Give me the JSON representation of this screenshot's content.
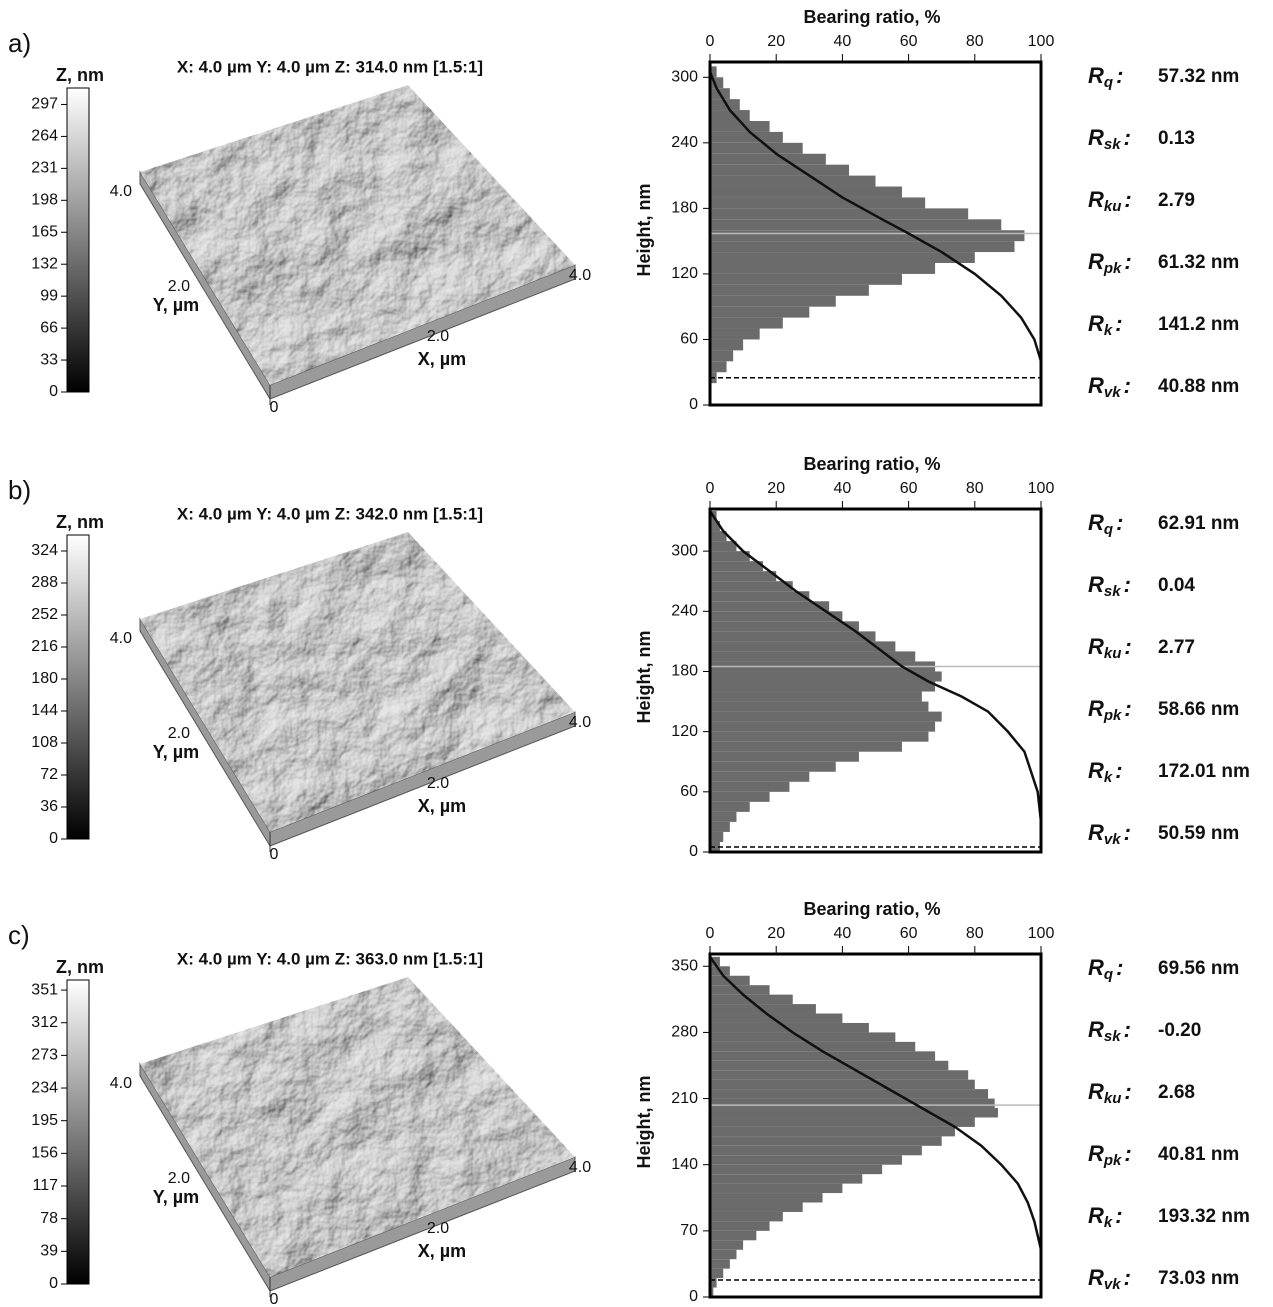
{
  "chart_data": [
    {
      "type": "bearing-histogram",
      "panel_label": "a)",
      "afm": {
        "title": "X: 4.0 µm Y: 4.0 µm Z: 314.0 nm [1.5:1]",
        "colorbar": {
          "label": "Z, nm",
          "ylim": [
            0,
            314
          ],
          "yticks": [
            0,
            33,
            66,
            99,
            132,
            165,
            198,
            231,
            264,
            297
          ]
        },
        "x_label": "X, µm",
        "y_label": "Y, µm",
        "origin": 0,
        "x_ticks": [
          {
            "value": 2,
            "label": "2.0"
          },
          {
            "value": 4,
            "label": "4.0"
          }
        ],
        "y_ticks": [
          {
            "value": 2,
            "label": "2.0"
          },
          {
            "value": 4,
            "label": "4.0"
          }
        ]
      },
      "title": "Bearing ratio, %",
      "y_label": "Height, nm",
      "xlim": [
        0,
        100
      ],
      "xticks": [
        0,
        20,
        40,
        60,
        80,
        100
      ],
      "ylim": [
        0,
        314
      ],
      "yticks": [
        0,
        60,
        120,
        180,
        240,
        300
      ],
      "bins": [
        20,
        30,
        40,
        50,
        60,
        70,
        80,
        90,
        100,
        110,
        120,
        130,
        140,
        150,
        160,
        170,
        180,
        190,
        200,
        210,
        220,
        230,
        240,
        250,
        260,
        270,
        280,
        290,
        300,
        310
      ],
      "counts": [
        2,
        5,
        7,
        10,
        15,
        22,
        30,
        38,
        48,
        58,
        68,
        80,
        92,
        95,
        88,
        78,
        65,
        58,
        50,
        42,
        35,
        28,
        22,
        18,
        12,
        9,
        6,
        4,
        2
      ],
      "curve": {
        "x": [
          0,
          2,
          6,
          12,
          20,
          30,
          40,
          52,
          60,
          70,
          80,
          88,
          94,
          98,
          100
        ],
        "y": [
          305,
          290,
          270,
          250,
          230,
          210,
          190,
          170,
          157,
          140,
          120,
          100,
          80,
          60,
          40
        ]
      },
      "mid_line": 157,
      "dashed_line": 25,
      "params": [
        {
          "symbol": "R",
          "sub": "q",
          "sep": ":",
          "value": "57.32 nm"
        },
        {
          "symbol": "R",
          "sub": "sk",
          "sep": ":",
          "value": "0.13"
        },
        {
          "symbol": "R",
          "sub": "ku",
          "sep": ":",
          "value": "2.79"
        },
        {
          "symbol": "R",
          "sub": "pk",
          "sep": ":",
          "value": "61.32 nm"
        },
        {
          "symbol": "R",
          "sub": "k",
          "sep": ":",
          "value": "141.2 nm"
        },
        {
          "symbol": "R",
          "sub": "vk",
          "sep": ":",
          "value": "40.88 nm"
        }
      ]
    },
    {
      "type": "bearing-histogram",
      "panel_label": "b)",
      "afm": {
        "title": "X: 4.0 µm Y: 4.0 µm Z: 342.0 nm [1.5:1]",
        "colorbar": {
          "label": "Z, nm",
          "ylim": [
            0,
            342
          ],
          "yticks": [
            0,
            36,
            72,
            108,
            144,
            180,
            216,
            252,
            288,
            324
          ]
        },
        "x_label": "X, µm",
        "y_label": "Y, µm",
        "origin": 0,
        "x_ticks": [
          {
            "value": 2,
            "label": "2.0"
          },
          {
            "value": 4,
            "label": "4.0"
          }
        ],
        "y_ticks": [
          {
            "value": 2,
            "label": "2.0"
          },
          {
            "value": 4,
            "label": "4.0"
          }
        ]
      },
      "title": "Bearing ratio, %",
      "y_label": "Height, nm",
      "xlim": [
        0,
        100
      ],
      "xticks": [
        0,
        20,
        40,
        60,
        80,
        100
      ],
      "ylim": [
        0,
        342
      ],
      "yticks": [
        0,
        60,
        120,
        180,
        240,
        300
      ],
      "bins": [
        0,
        10,
        20,
        30,
        40,
        50,
        60,
        70,
        80,
        90,
        100,
        110,
        120,
        130,
        140,
        150,
        160,
        170,
        180,
        190,
        200,
        210,
        220,
        230,
        240,
        250,
        260,
        270,
        280,
        290,
        300,
        310,
        320,
        330,
        340
      ],
      "counts": [
        3,
        4,
        6,
        8,
        12,
        18,
        24,
        30,
        38,
        45,
        58,
        66,
        68,
        70,
        66,
        64,
        68,
        70,
        68,
        62,
        56,
        50,
        45,
        40,
        36,
        30,
        25,
        20,
        16,
        12,
        8,
        5,
        3,
        2
      ],
      "curve": {
        "x": [
          0,
          4,
          10,
          18,
          26,
          35,
          44,
          52,
          58,
          66,
          76,
          84,
          90,
          95,
          97,
          99,
          100
        ],
        "y": [
          340,
          320,
          300,
          280,
          260,
          240,
          220,
          200,
          185,
          170,
          155,
          140,
          120,
          100,
          80,
          60,
          30
        ]
      },
      "mid_line": 185,
      "dashed_line": 5,
      "params": [
        {
          "symbol": "R",
          "sub": "q",
          "sep": ":",
          "value": "62.91 nm"
        },
        {
          "symbol": "R",
          "sub": "sk",
          "sep": ":",
          "value": "0.04"
        },
        {
          "symbol": "R",
          "sub": "ku",
          "sep": ":",
          "value": "2.77"
        },
        {
          "symbol": "R",
          "sub": "pk",
          "sep": ":",
          "value": "58.66 nm"
        },
        {
          "symbol": "R",
          "sub": "k",
          "sep": ":",
          "value": "172.01 nm"
        },
        {
          "symbol": "R",
          "sub": "vk",
          "sep": ":",
          "value": "50.59 nm"
        }
      ]
    },
    {
      "type": "bearing-histogram",
      "panel_label": "c)",
      "afm": {
        "title": "X: 4.0 µm Y: 4.0 µm Z: 363.0 nm [1.5:1]",
        "colorbar": {
          "label": "Z, nm",
          "ylim": [
            0,
            363
          ],
          "yticks": [
            0,
            39,
            78,
            117,
            156,
            195,
            234,
            273,
            312,
            351
          ]
        },
        "x_label": "X, µm",
        "y_label": "Y, µm",
        "origin": 0,
        "x_ticks": [
          {
            "value": 2,
            "label": "2.0"
          },
          {
            "value": 4,
            "label": "4.0"
          }
        ],
        "y_ticks": [
          {
            "value": 2,
            "label": "2.0"
          },
          {
            "value": 4,
            "label": "4.0"
          }
        ]
      },
      "title": "Bearing ratio, %",
      "y_label": "Height, nm",
      "xlim": [
        0,
        100
      ],
      "xticks": [
        0,
        20,
        40,
        60,
        80,
        100
      ],
      "ylim": [
        0,
        363
      ],
      "yticks": [
        0,
        70,
        140,
        210,
        280,
        350
      ],
      "bins": [
        0,
        10,
        20,
        30,
        40,
        50,
        60,
        70,
        80,
        90,
        100,
        110,
        120,
        130,
        140,
        150,
        160,
        170,
        180,
        190,
        200,
        210,
        220,
        230,
        240,
        250,
        260,
        270,
        280,
        290,
        300,
        310,
        320,
        330,
        340,
        350,
        360
      ],
      "counts": [
        1,
        2,
        4,
        6,
        8,
        10,
        14,
        18,
        22,
        28,
        34,
        40,
        46,
        52,
        58,
        64,
        70,
        74,
        80,
        87,
        86,
        84,
        80,
        78,
        72,
        68,
        62,
        56,
        48,
        40,
        32,
        25,
        18,
        12,
        6,
        3
      ],
      "curve": {
        "x": [
          0,
          4,
          10,
          17,
          25,
          34,
          44,
          54,
          64,
          74,
          82,
          88,
          93,
          96,
          98,
          100
        ],
        "y": [
          360,
          340,
          320,
          300,
          280,
          260,
          240,
          220,
          200,
          180,
          160,
          140,
          120,
          100,
          80,
          50
        ]
      },
      "mid_line": 203,
      "dashed_line": 18,
      "params": [
        {
          "symbol": "R",
          "sub": "q",
          "sep": ":",
          "value": "69.56 nm"
        },
        {
          "symbol": "R",
          "sub": "sk",
          "sep": ":",
          "value": "-0.20"
        },
        {
          "symbol": "R",
          "sub": "ku",
          "sep": ":",
          "value": "2.68"
        },
        {
          "symbol": "R",
          "sub": "pk",
          "sep": ":",
          "value": "40.81 nm"
        },
        {
          "symbol": "R",
          "sub": "k",
          "sep": ":",
          "value": "193.32 nm"
        },
        {
          "symbol": "R",
          "sub": "vk",
          "sep": ":",
          "value": "73.03 nm"
        }
      ]
    }
  ]
}
